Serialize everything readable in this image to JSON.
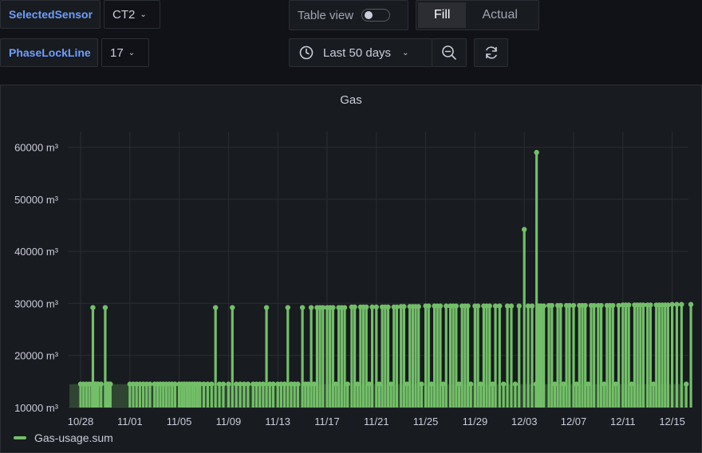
{
  "variables": [
    {
      "label": "SelectedSensor",
      "value": "CT2"
    },
    {
      "label": "PhaseLockLine",
      "value": "17"
    }
  ],
  "toolbar": {
    "table_view_label": "Table view",
    "fill_label": "Fill",
    "actual_label": "Actual",
    "time_range": "Last 50 days"
  },
  "panel": {
    "title": "Gas",
    "legend_label": "Gas-usage.sum"
  },
  "colors": {
    "series": "#73bf69",
    "background": "#111217",
    "panel": "#181b1f",
    "accent": "#6e9fff"
  },
  "chart_data": {
    "type": "bar",
    "title": "Gas",
    "unit": "m³",
    "ylim": [
      10000,
      63000
    ],
    "y_ticks": [
      "10000 m³",
      "20000 m³",
      "30000 m³",
      "40000 m³",
      "50000 m³",
      "60000 m³"
    ],
    "x_ticks": [
      "10/28",
      "11/01",
      "11/05",
      "11/09",
      "11/13",
      "11/17",
      "11/21",
      "11/25",
      "11/29",
      "12/03",
      "12/07",
      "12/11",
      "12/15"
    ],
    "grid": true,
    "legend_position": "bottom-left",
    "series": [
      {
        "name": "Gas-usage.sum",
        "color": "#73bf69",
        "spikes": [
          {
            "x": "10/28",
            "values": [
              14500,
              14500,
              14500,
              14500,
              14500,
              14500,
              14500,
              14500
            ]
          },
          {
            "x": "10/29",
            "values": [
              29200,
              14500,
              14500,
              14500,
              14500
            ]
          },
          {
            "x": "10/30",
            "values": [
              29200,
              14500,
              14500,
              14500,
              14500,
              14500
            ]
          },
          {
            "x": "11/01",
            "values": [
              14500,
              14500,
              14500,
              14500,
              14500,
              14500,
              14500
            ]
          },
          {
            "x": "11/03",
            "values": [
              14500,
              14500,
              14500,
              14500,
              14500,
              14500,
              14500,
              14500
            ]
          },
          {
            "x": "11/05",
            "values": [
              14500,
              14500,
              14500,
              14500,
              14500,
              14500,
              14500,
              14500,
              14500
            ]
          },
          {
            "x": "11/07",
            "values": [
              14500,
              14500,
              14500,
              29200,
              14500,
              14500
            ]
          },
          {
            "x": "11/09",
            "values": [
              14500,
              29200,
              14500,
              14500,
              14500,
              14500
            ]
          },
          {
            "x": "11/11",
            "values": [
              14500,
              14500,
              14500,
              14500,
              29200,
              14500,
              14500
            ]
          },
          {
            "x": "11/13",
            "values": [
              14500,
              14500,
              14500,
              29200,
              14500,
              14500,
              14500
            ]
          },
          {
            "x": "11/15",
            "values": [
              29200,
              14500,
              14500,
              29200,
              14500,
              29200,
              29200,
              29200
            ]
          },
          {
            "x": "11/17",
            "values": [
              29200,
              29200,
              29200,
              14500,
              29200,
              29200,
              29200,
              14500
            ]
          },
          {
            "x": "11/19",
            "values": [
              29300,
              29300,
              14500,
              29300,
              29300,
              29300,
              14500,
              29300
            ]
          },
          {
            "x": "11/21",
            "values": [
              29300,
              14500,
              29300,
              29300,
              29300,
              14500,
              29300,
              29300
            ]
          },
          {
            "x": "11/23",
            "values": [
              29400,
              29400,
              14500,
              29400,
              29400,
              29400,
              29400,
              14500
            ]
          },
          {
            "x": "11/25",
            "values": [
              29500,
              29500,
              14500,
              29500,
              29500,
              29500,
              14500,
              29500
            ]
          },
          {
            "x": "11/27",
            "values": [
              29500,
              29500,
              29500,
              14500,
              29500,
              29500,
              29500,
              14500
            ]
          },
          {
            "x": "11/29",
            "values": [
              29500,
              29500,
              14500,
              29500,
              29500,
              29500,
              14500,
              29500
            ]
          },
          {
            "x": "12/01",
            "values": [
              29500,
              14500,
              29500,
              29500,
              14500,
              29500
            ]
          },
          {
            "x": "12/03",
            "values": [
              44200,
              29500,
              29500,
              14500,
              29500,
              29500
            ]
          },
          {
            "x": "12/04",
            "values": [
              59000,
              29500,
              14500,
              29500
            ]
          },
          {
            "x": "12/05",
            "values": [
              29600,
              29600,
              14500,
              29600,
              29600,
              14500,
              29600,
              29600
            ]
          },
          {
            "x": "12/07",
            "values": [
              29600,
              14500,
              29600,
              29600,
              29600,
              14500,
              29600,
              29600
            ]
          },
          {
            "x": "12/09",
            "values": [
              29600,
              29600,
              14500,
              29600,
              29600,
              29600,
              14500,
              29600
            ]
          },
          {
            "x": "12/11",
            "values": [
              29700,
              29700,
              29700,
              14500,
              29700,
              29700,
              29700,
              29700
            ]
          },
          {
            "x": "12/13",
            "values": [
              29700,
              29700,
              14500,
              29700,
              29700,
              29700,
              29700,
              29700
            ]
          },
          {
            "x": "12/15",
            "values": [
              29800,
              29800,
              29800,
              14500,
              29800
            ]
          }
        ]
      }
    ]
  }
}
